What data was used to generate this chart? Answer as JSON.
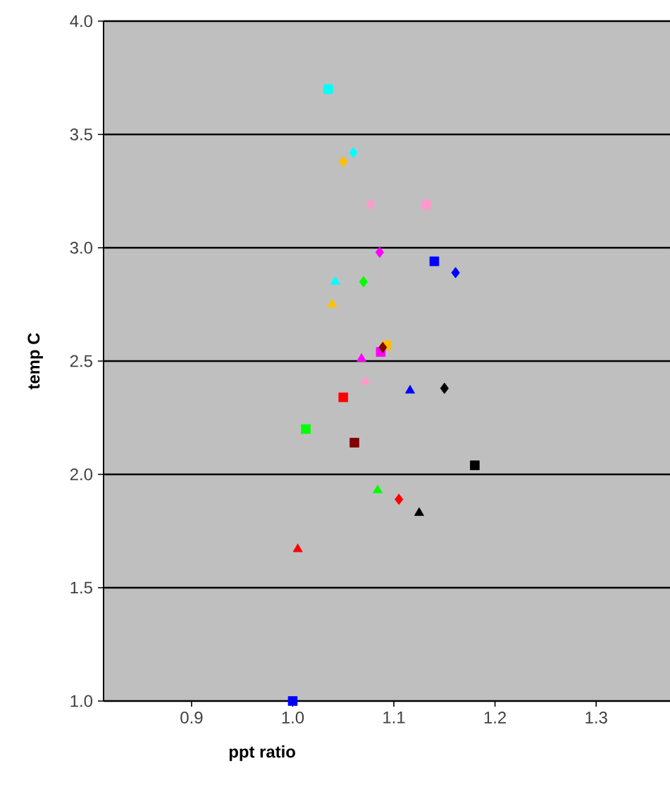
{
  "chart_data": {
    "type": "scatter",
    "xlabel": "ppt ratio",
    "ylabel": "temp C",
    "xlim": [
      0.813,
      1.373
    ],
    "ylim": [
      1.0,
      4.0
    ],
    "xticks": [
      {
        "value": 0.9,
        "label": "0.9"
      },
      {
        "value": 1.0,
        "label": "1.0"
      },
      {
        "value": 1.1,
        "label": "1.1"
      },
      {
        "value": 1.2,
        "label": "1.2"
      },
      {
        "value": 1.3,
        "label": "1.3"
      }
    ],
    "yticks": [
      {
        "value": 1.0,
        "label": "1.0"
      },
      {
        "value": 1.5,
        "label": "1.5"
      },
      {
        "value": 2.0,
        "label": "2.0"
      },
      {
        "value": 2.5,
        "label": "2.5"
      },
      {
        "value": 3.0,
        "label": "3.0"
      },
      {
        "value": 3.5,
        "label": "3.5"
      },
      {
        "value": 4.0,
        "label": "4.0"
      }
    ],
    "grid": "y",
    "series": [
      {
        "color": "#00ffff",
        "marker": "square",
        "x": [
          1.035
        ],
        "values": [
          3.7
        ]
      },
      {
        "color": "#00ffff",
        "marker": "diamond",
        "x": [
          1.06
        ],
        "values": [
          3.42
        ]
      },
      {
        "color": "#00ffff",
        "marker": "triangle",
        "x": [
          1.042
        ],
        "values": [
          2.85
        ]
      },
      {
        "color": "#ffc000",
        "marker": "diamond",
        "x": [
          1.05
        ],
        "values": [
          3.38
        ]
      },
      {
        "color": "#ffc000",
        "marker": "triangle",
        "x": [
          1.039
        ],
        "values": [
          2.75
        ]
      },
      {
        "color": "#ffc000",
        "marker": "square",
        "x": [
          1.093
        ],
        "values": [
          2.57
        ]
      },
      {
        "color": "#ff99cc",
        "marker": "diamond",
        "x": [
          1.077
        ],
        "values": [
          3.19
        ]
      },
      {
        "color": "#ff99cc",
        "marker": "square",
        "x": [
          1.132
        ],
        "values": [
          3.19
        ]
      },
      {
        "color": "#ff99cc",
        "marker": "triangle",
        "x": [
          1.072
        ],
        "values": [
          2.41
        ]
      },
      {
        "color": "#ff00ff",
        "marker": "diamond",
        "x": [
          1.086
        ],
        "values": [
          2.98
        ]
      },
      {
        "color": "#ff00ff",
        "marker": "square",
        "x": [
          1.087
        ],
        "values": [
          2.54
        ]
      },
      {
        "color": "#ff00ff",
        "marker": "triangle",
        "x": [
          1.068
        ],
        "values": [
          2.51
        ]
      },
      {
        "color": "#0000ff",
        "marker": "square",
        "x": [
          1.14
        ],
        "values": [
          2.94
        ]
      },
      {
        "color": "#0000ff",
        "marker": "diamond",
        "x": [
          1.161
        ],
        "values": [
          2.89
        ]
      },
      {
        "color": "#0000ff",
        "marker": "triangle",
        "x": [
          1.116
        ],
        "values": [
          2.37
        ]
      },
      {
        "color": "#0000ff",
        "marker": "square",
        "x": [
          1.0
        ],
        "values": [
          1.0
        ]
      },
      {
        "color": "#00ff00",
        "marker": "diamond",
        "x": [
          1.07
        ],
        "values": [
          2.85
        ]
      },
      {
        "color": "#00ff00",
        "marker": "square",
        "x": [
          1.013
        ],
        "values": [
          2.2
        ]
      },
      {
        "color": "#00ff00",
        "marker": "triangle",
        "x": [
          1.084
        ],
        "values": [
          1.93
        ]
      },
      {
        "color": "#800000",
        "marker": "diamond",
        "x": [
          1.089
        ],
        "values": [
          2.56
        ]
      },
      {
        "color": "#800000",
        "marker": "square",
        "x": [
          1.061
        ],
        "values": [
          2.14
        ]
      },
      {
        "color": "#ff0000",
        "marker": "square",
        "x": [
          1.05
        ],
        "values": [
          2.34
        ]
      },
      {
        "color": "#ff0000",
        "marker": "diamond",
        "x": [
          1.105
        ],
        "values": [
          1.89
        ]
      },
      {
        "color": "#ff0000",
        "marker": "triangle",
        "x": [
          1.005
        ],
        "values": [
          1.67
        ]
      },
      {
        "color": "#000000",
        "marker": "diamond",
        "x": [
          1.15
        ],
        "values": [
          2.38
        ]
      },
      {
        "color": "#000000",
        "marker": "square",
        "x": [
          1.18
        ],
        "values": [
          2.04
        ]
      },
      {
        "color": "#000000",
        "marker": "triangle",
        "x": [
          1.125
        ],
        "values": [
          1.83
        ]
      }
    ]
  }
}
